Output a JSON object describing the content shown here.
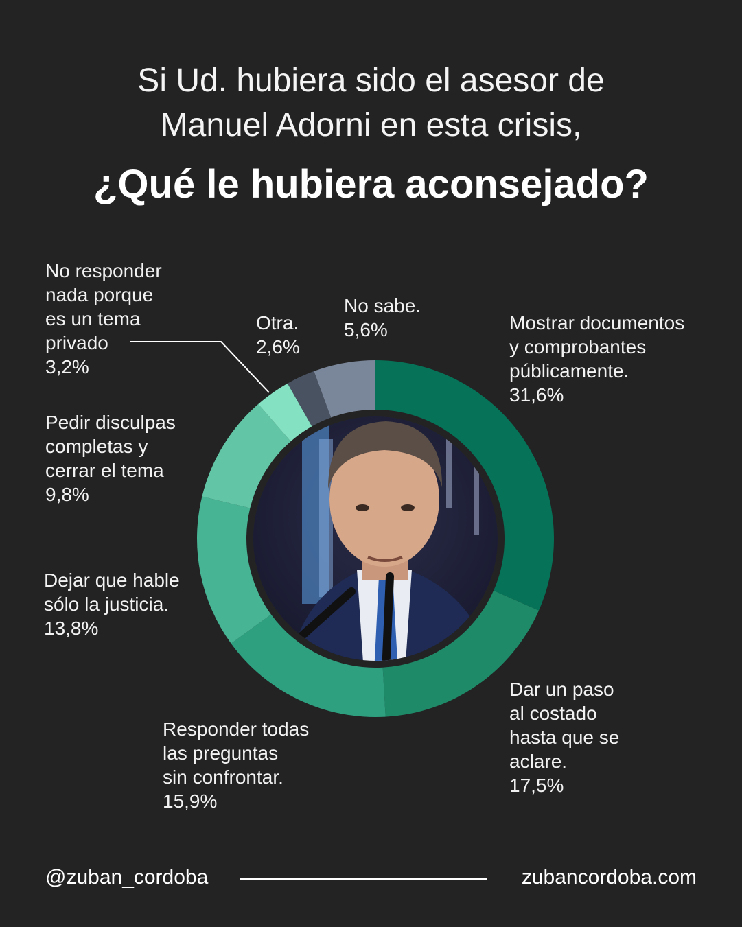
{
  "title": {
    "line1": "Si Ud. hubiera sido el asesor de",
    "line2": "Manuel Adorni en esta crisis,",
    "question": "¿Qué le hubiera aconsejado?"
  },
  "chart_data": {
    "type": "pie",
    "variant": "donut",
    "start_angle": "12 o'clock",
    "direction": "clockwise",
    "center_image": "portrait-photo",
    "slices": [
      {
        "label_lines": [
          "Mostrar documentos",
          "y comprobantes",
          "públicamente."
        ],
        "value_text": "31,6%",
        "value": 31.6,
        "color": "#067257"
      },
      {
        "label_lines": [
          "Dar un paso",
          "al costado",
          "hasta que se",
          "aclare."
        ],
        "value_text": "17,5%",
        "value": 17.5,
        "color": "#1f8a68"
      },
      {
        "label_lines": [
          "Responder todas",
          "las preguntas",
          "sin confrontar."
        ],
        "value_text": "15,9%",
        "value": 15.9,
        "color": "#2ea080"
      },
      {
        "label_lines": [
          "Dejar que hable",
          "sólo la justicia."
        ],
        "value_text": "13,8%",
        "value": 13.8,
        "color": "#47b494"
      },
      {
        "label_lines": [
          "Pedir disculpas",
          "completas y",
          "cerrar el tema"
        ],
        "value_text": "9,8%",
        "value": 9.8,
        "color": "#62c6a6"
      },
      {
        "label_lines": [
          "No responder",
          "nada porque",
          "es un tema",
          "privado"
        ],
        "value_text": "3,2%",
        "value": 3.2,
        "color": "#84e2c2"
      },
      {
        "label_lines": [
          "Otra."
        ],
        "value_text": "2,6%",
        "value": 2.6,
        "color": "#485261"
      },
      {
        "label_lines": [
          "No sabe."
        ],
        "value_text": "5,6%",
        "value": 5.6,
        "color": "#7a8699"
      }
    ]
  },
  "footer": {
    "handle": "@zuban_cordoba",
    "website": "zubancordoba.com"
  }
}
